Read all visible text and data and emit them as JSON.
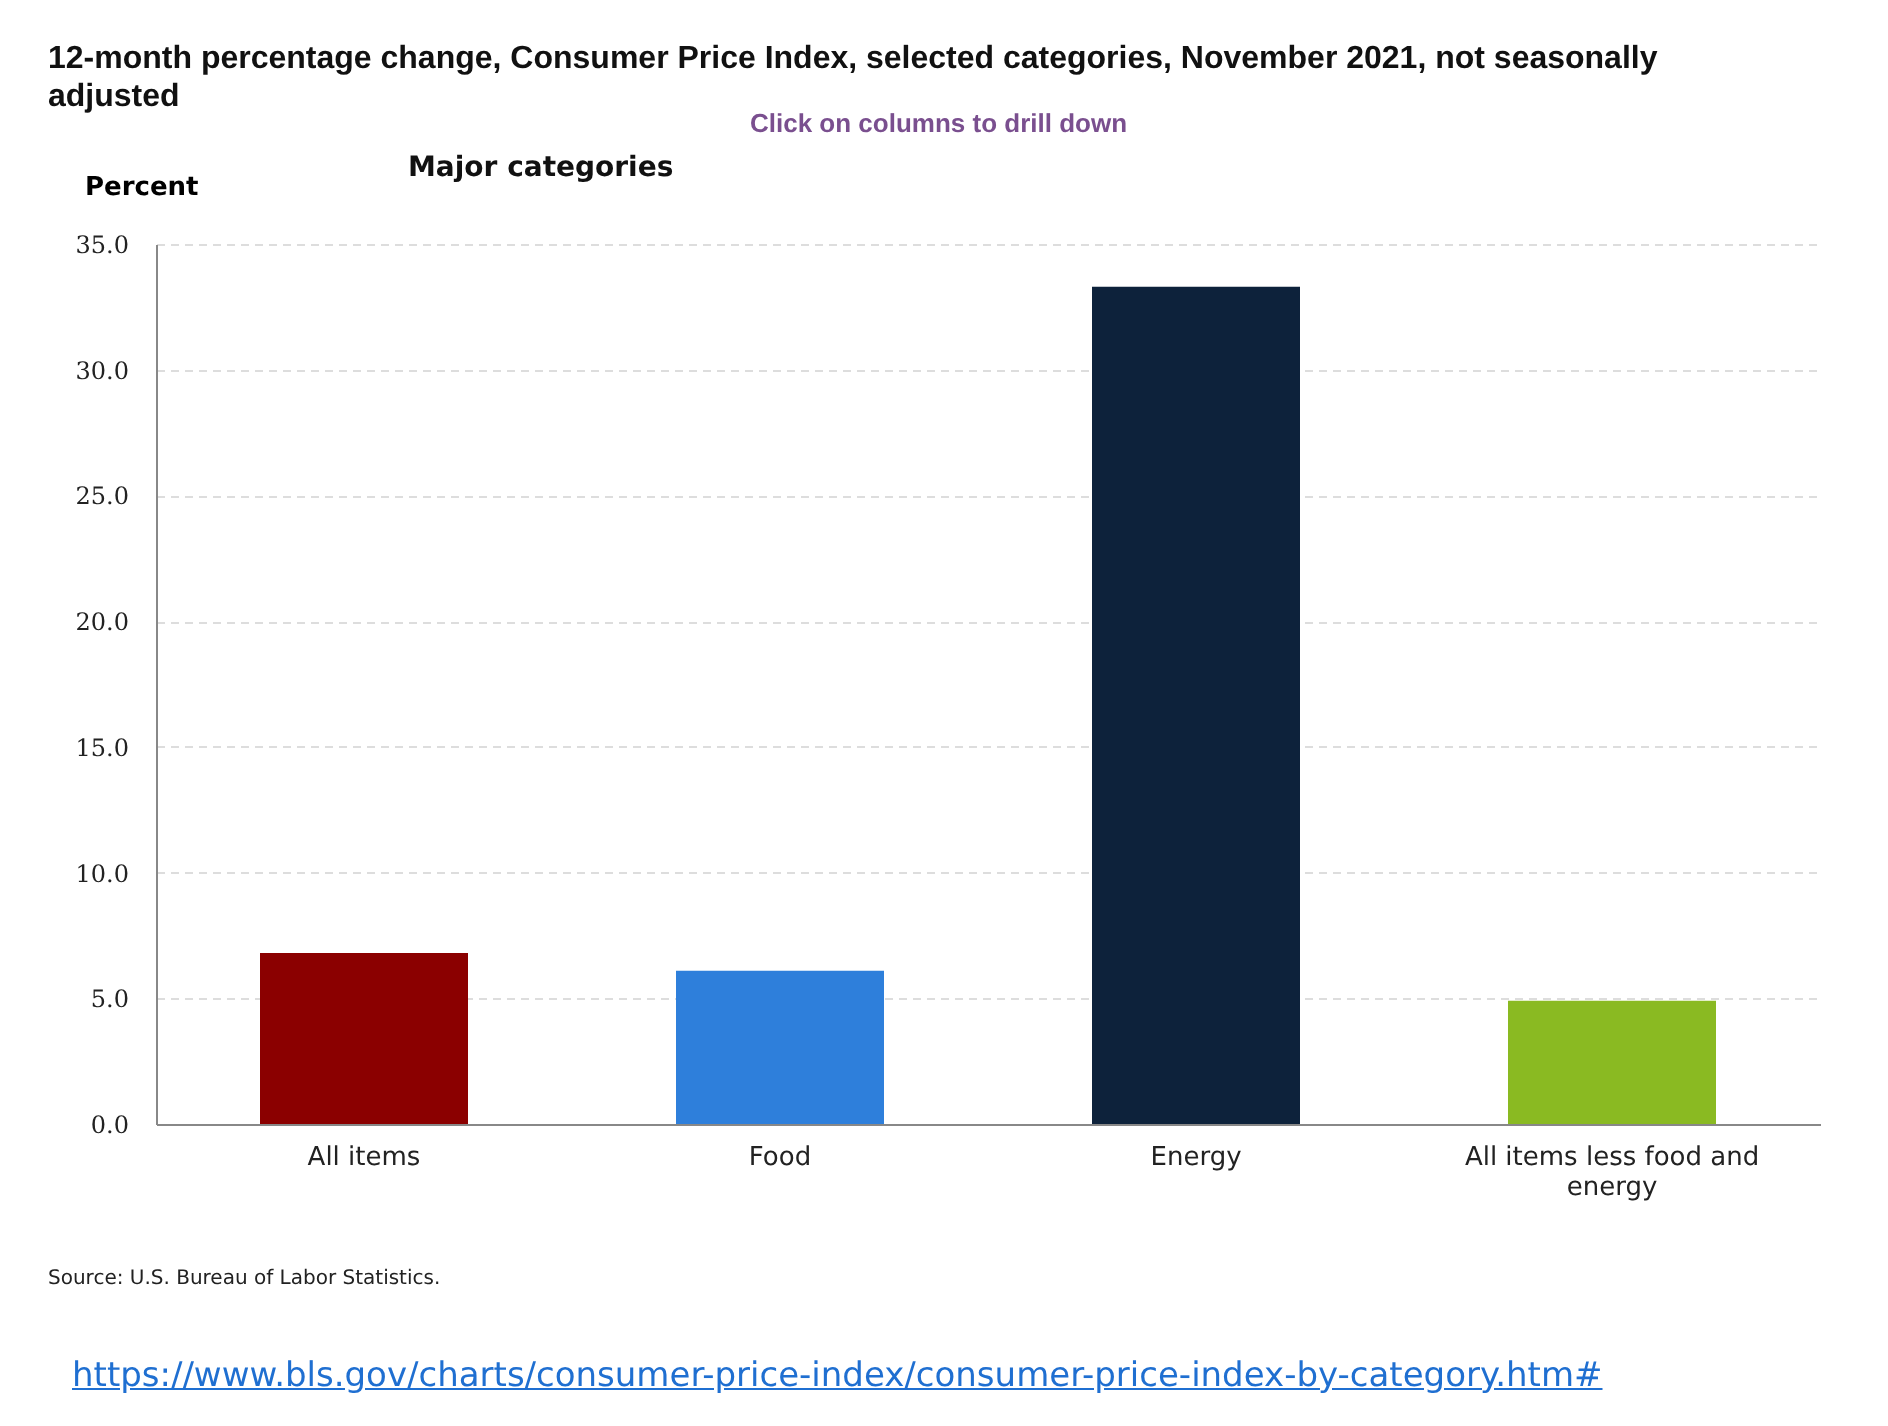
{
  "chart_data": {
    "type": "bar",
    "title": "12-month percentage change, Consumer Price Index, selected categories, November 2021, not seasonally adjusted",
    "subtitle": "Click on columns to drill down",
    "ylabel": "Percent",
    "annotations": [
      "Major categories",
      "Source: U.S. Bureau of Labor Statistics.",
      "https://www.bls.gov/charts/consumer-price-index/consumer-price-index-by-category.htm#"
    ],
    "categories": [
      "All items",
      "Food",
      "Energy",
      "All items less food and energy"
    ],
    "values": [
      6.8,
      6.1,
      33.3,
      4.9
    ],
    "colors": [
      "#8b0000",
      "#2e7fdb",
      "#0d223b",
      "#8aba22"
    ],
    "ylim": [
      0,
      35
    ],
    "yticks": [
      {
        "value": 0,
        "label": "0.0"
      },
      {
        "value": 5,
        "label": "5.0"
      },
      {
        "value": 10,
        "label": "10.0"
      },
      {
        "value": 15,
        "label": "15.0"
      },
      {
        "value": 20,
        "label": "20.0"
      },
      {
        "value": 25,
        "label": "25.0"
      },
      {
        "value": 30,
        "label": "30.0"
      },
      {
        "value": 35,
        "label": "35.0"
      }
    ],
    "grid": "y"
  }
}
